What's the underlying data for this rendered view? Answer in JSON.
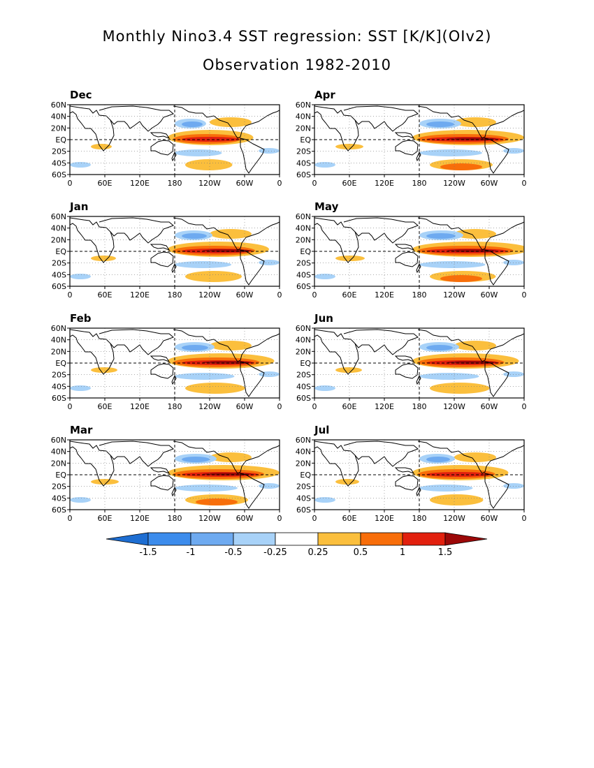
{
  "title": "Monthly Nino3.4 SST regression: SST [K/K](OIv2)",
  "subtitle": "Observation 1982-2010",
  "x_tick_labels": [
    "0",
    "60E",
    "120E",
    "180",
    "120W",
    "60W",
    "0"
  ],
  "y_tick_labels": [
    "60N",
    "40N",
    "20N",
    "EQ",
    "20S",
    "40S",
    "60S"
  ],
  "panels": [
    {
      "month": "Dec",
      "strength": 0.75
    },
    {
      "month": "Apr",
      "strength": 1.0
    },
    {
      "month": "Jan",
      "strength": 0.9
    },
    {
      "month": "May",
      "strength": 1.05
    },
    {
      "month": "Feb",
      "strength": 0.95
    },
    {
      "month": "Jun",
      "strength": 0.95
    },
    {
      "month": "Mar",
      "strength": 1.0
    },
    {
      "month": "Jul",
      "strength": 0.85
    }
  ],
  "colorbar": {
    "labels": [
      "-1.5",
      "-1",
      "-0.5",
      "-0.25",
      "0.25",
      "0.5",
      "1",
      "1.5"
    ],
    "colors": [
      "#1e6ed2",
      "#3c8cec",
      "#6eaaf0",
      "#a8d2f8",
      "#ffffff",
      "#fbbf3d",
      "#f86e0a",
      "#e2200e",
      "#9c0808"
    ]
  }
}
